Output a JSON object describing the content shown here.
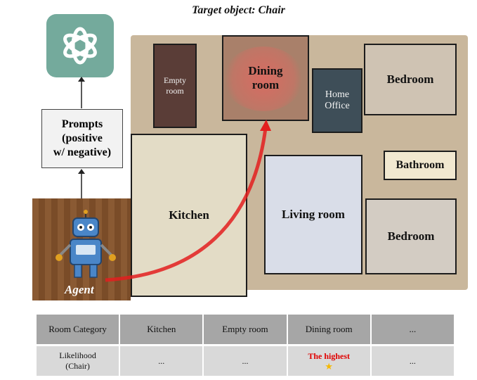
{
  "title": "Target object: Chair",
  "prompts_box": {
    "line1": "Prompts",
    "line2": "(positive",
    "line3": "w/ negative)"
  },
  "agent_label": "Agent",
  "rooms": {
    "empty_room": {
      "line1": "Empty",
      "line2": "room"
    },
    "dining_room": {
      "line1": "Dining",
      "line2": "room"
    },
    "home_office": {
      "line1": "Home",
      "line2": "Office"
    },
    "bedroom_top": "Bedroom",
    "bathroom": "Bathroom",
    "kitchen": "Kitchen",
    "living_room": "Living room",
    "bedroom_bottom": "Bedroom"
  },
  "table": {
    "headers": [
      "Room Category",
      "Kitchen",
      "Empty room",
      "Dining room",
      "..."
    ],
    "row": {
      "label_line1": "Likelihood",
      "label_line2": "(Chair)",
      "kitchen": "...",
      "empty_room": "...",
      "dining_room": "The highest",
      "more": "..."
    }
  },
  "colors": {
    "logo_bg": "#74aa9c",
    "path_arrow": "#e31e1e",
    "highlight": "#ff5a5a",
    "highest_text": "#e00000"
  },
  "icons": [
    "openai-logo-icon",
    "robot-agent-icon",
    "star-icon",
    "arrow-up-icon"
  ]
}
